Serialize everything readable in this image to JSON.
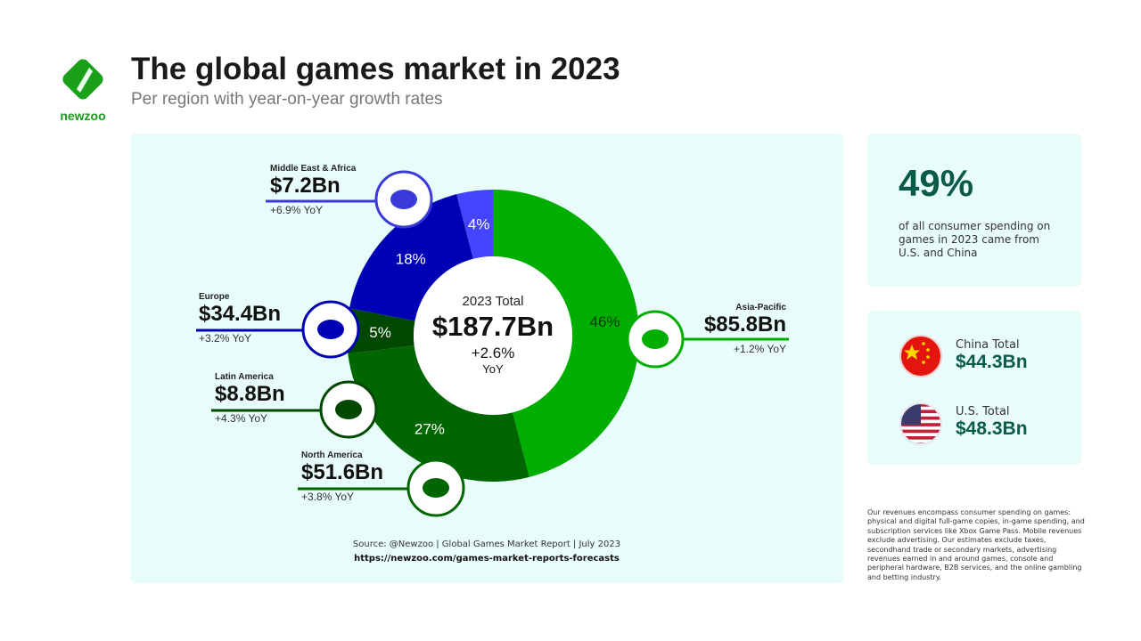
{
  "brand": {
    "name": "newzoo",
    "color": "#1a9a1a"
  },
  "header": {
    "title": "The global games market in 2023",
    "subtitle": "Per region with year-on-year growth rates"
  },
  "chart_data": {
    "type": "pie",
    "style": "donut",
    "center": {
      "label": "2023 Total",
      "value": "$187.7Bn",
      "growth": "+2.6%",
      "growth_unit": "YoY"
    },
    "categories": [
      "Asia-Pacific",
      "North America",
      "Latin America",
      "Europe",
      "Middle East & Africa"
    ],
    "percent": [
      46,
      27,
      5,
      18,
      4
    ],
    "percent_labels": [
      "46%",
      "27%",
      "5%",
      "18%",
      "4%"
    ],
    "values_bn": [
      85.8,
      51.6,
      8.8,
      34.4,
      7.2
    ],
    "value_labels": [
      "$85.8Bn",
      "$51.6Bn",
      "$8.8Bn",
      "$34.4Bn",
      "$7.2Bn"
    ],
    "yoy_labels": [
      "+1.2% YoY",
      "+3.8% YoY",
      "+4.3% YoY",
      "+3.2% YoY",
      "+6.9% YoY"
    ],
    "colors": [
      "#00ae00",
      "#006600",
      "#004800",
      "#0000b4",
      "#4444ff"
    ],
    "label_colors": [
      "#003a00",
      "#ffffff",
      "#ffffff",
      "#ffffff",
      "#ffffff"
    ]
  },
  "source": {
    "line": "Source: @Newzoo | Global Games Market Report | July 2023",
    "url": "https://newzoo.com/games-market-reports-forecasts"
  },
  "stat": {
    "value": "49%",
    "description": "of all consumer spending on games in 2023 came from U.S. and China"
  },
  "totals": [
    {
      "label": "China Total",
      "value": "$44.3Bn",
      "icon": "china-flag-icon"
    },
    {
      "label": "U.S. Total",
      "value": "$48.3Bn",
      "icon": "us-flag-icon"
    }
  ],
  "note": "Our revenues encompass consumer spending on games: physical and digital full-game copies, in-game spending, and subscription services like Xbox Game Pass. Mobile revenues exclude advertising. Our estimates exclude taxes, secondhand trade or secondary markets, advertising revenues earned in and around games, console and peripheral hardware, B2B services, and the online gambling and betting industry."
}
